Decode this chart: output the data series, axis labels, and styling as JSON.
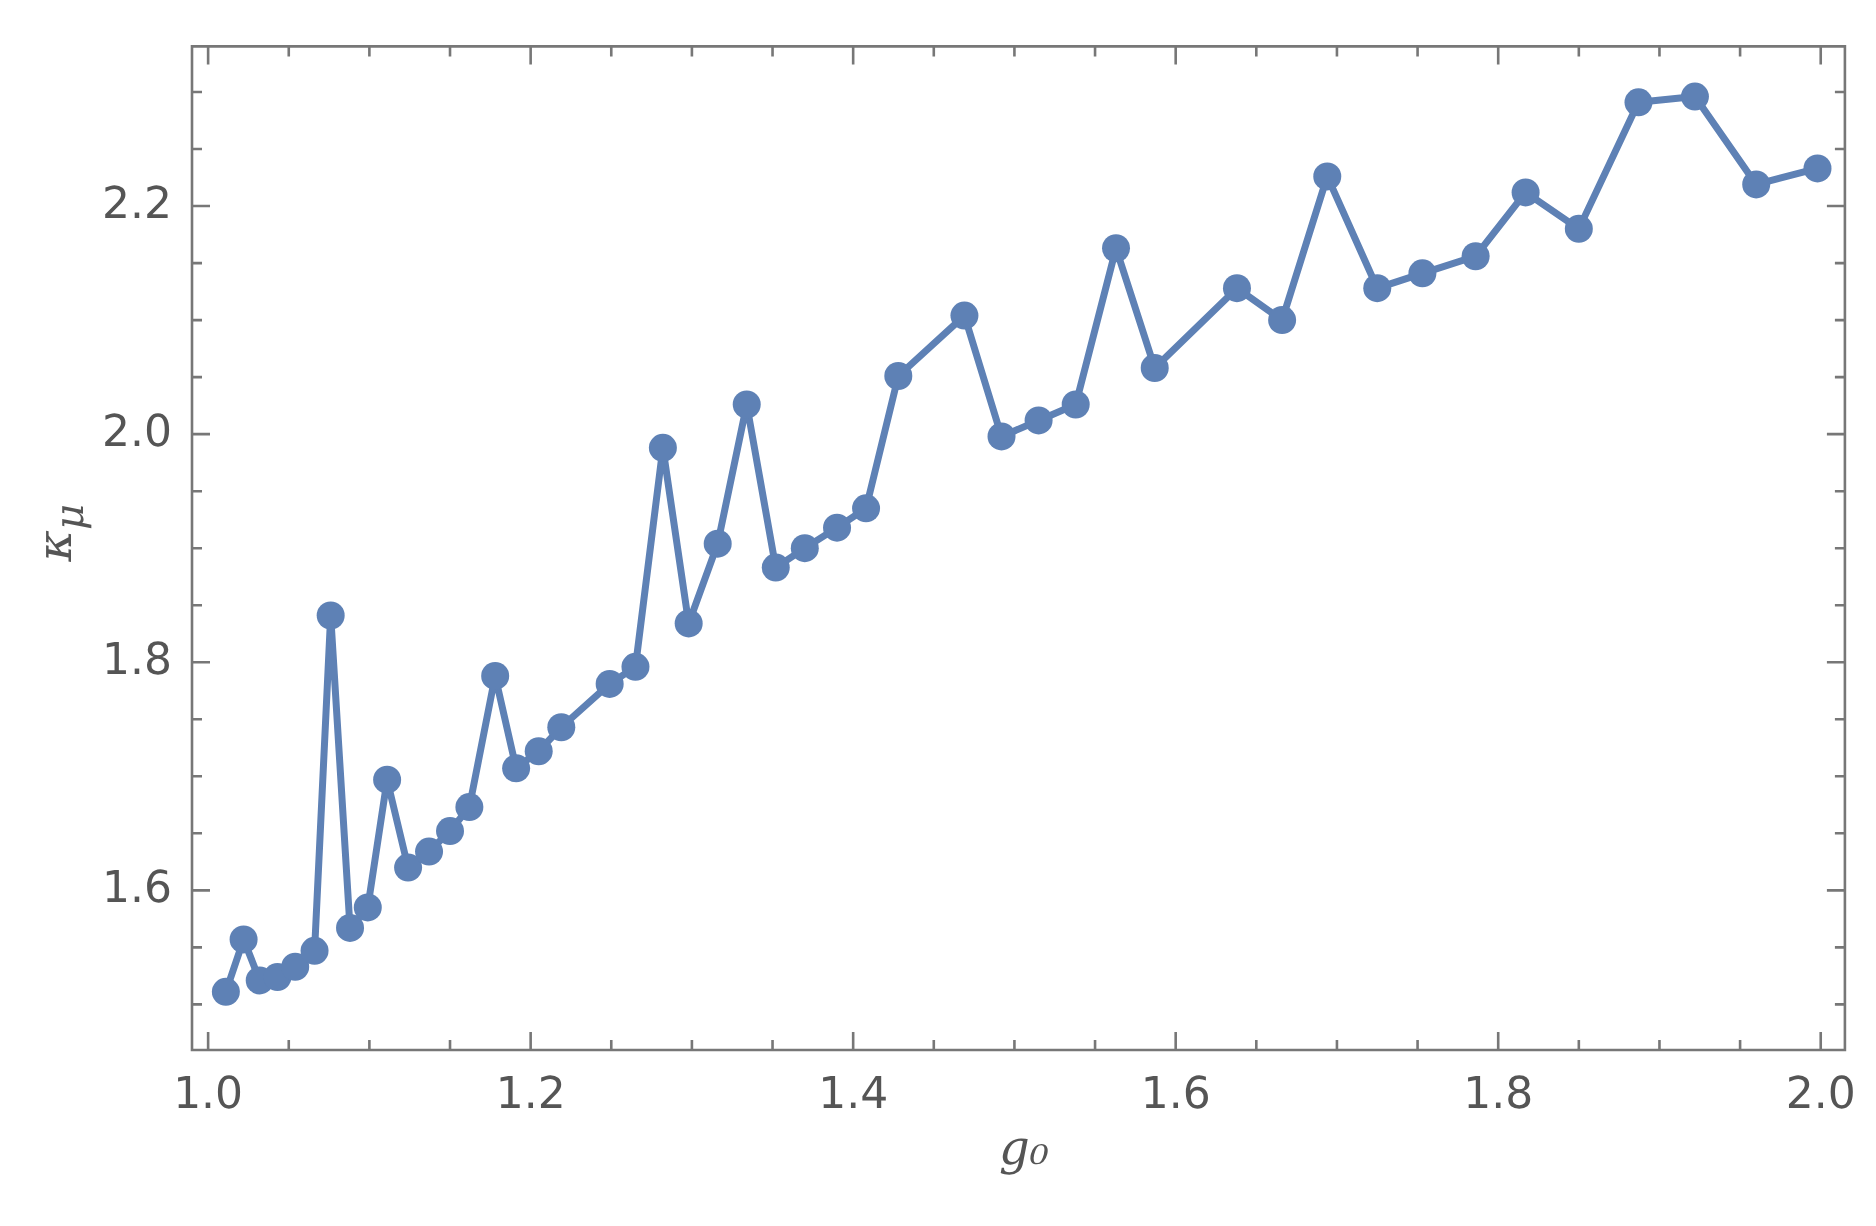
{
  "chart_data": {
    "type": "line",
    "xlabel": "g₀",
    "ylabel": "κ$_{μ}$",
    "marker": "circle",
    "line_style": "solid",
    "grid": false,
    "legend": false,
    "xlim": [
      0.99,
      2.015
    ],
    "ylim": [
      1.46,
      2.34
    ],
    "xticks": [
      {
        "value": 1.0,
        "label": "1.0"
      },
      {
        "value": 1.05,
        "label": null
      },
      {
        "value": 1.1,
        "label": null
      },
      {
        "value": 1.15,
        "label": null
      },
      {
        "value": 1.2,
        "label": "1.2"
      },
      {
        "value": 1.25,
        "label": null
      },
      {
        "value": 1.3,
        "label": null
      },
      {
        "value": 1.35,
        "label": null
      },
      {
        "value": 1.4,
        "label": "1.4"
      },
      {
        "value": 1.45,
        "label": null
      },
      {
        "value": 1.5,
        "label": null
      },
      {
        "value": 1.55,
        "label": null
      },
      {
        "value": 1.6,
        "label": "1.6"
      },
      {
        "value": 1.65,
        "label": null
      },
      {
        "value": 1.7,
        "label": null
      },
      {
        "value": 1.75,
        "label": null
      },
      {
        "value": 1.8,
        "label": "1.8"
      },
      {
        "value": 1.85,
        "label": null
      },
      {
        "value": 1.9,
        "label": null
      },
      {
        "value": 1.95,
        "label": null
      },
      {
        "value": 2.0,
        "label": "2.0"
      }
    ],
    "yticks": [
      {
        "value": 1.5,
        "label": null
      },
      {
        "value": 1.55,
        "label": null
      },
      {
        "value": 1.6,
        "label": "1.6"
      },
      {
        "value": 1.65,
        "label": null
      },
      {
        "value": 1.7,
        "label": null
      },
      {
        "value": 1.75,
        "label": null
      },
      {
        "value": 1.8,
        "label": "1.8"
      },
      {
        "value": 1.85,
        "label": null
      },
      {
        "value": 1.9,
        "label": null
      },
      {
        "value": 1.95,
        "label": null
      },
      {
        "value": 2.0,
        "label": "2.0"
      },
      {
        "value": 2.05,
        "label": null
      },
      {
        "value": 2.1,
        "label": null
      },
      {
        "value": 2.15,
        "label": null
      },
      {
        "value": 2.2,
        "label": "2.2"
      },
      {
        "value": 2.25,
        "label": null
      },
      {
        "value": 2.3,
        "label": null
      }
    ],
    "series": [
      {
        "color": "#5e81b5",
        "x": [
          1.011,
          1.022,
          1.032,
          1.043,
          1.054,
          1.066,
          1.076,
          1.088,
          1.099,
          1.111,
          1.124,
          1.137,
          1.15,
          1.162,
          1.178,
          1.191,
          1.205,
          1.219,
          1.249,
          1.265,
          1.282,
          1.298,
          1.316,
          1.334,
          1.352,
          1.37,
          1.39,
          1.408,
          1.428,
          1.469,
          1.492,
          1.515,
          1.538,
          1.563,
          1.587,
          1.638,
          1.666,
          1.694,
          1.725,
          1.753,
          1.786,
          1.817,
          1.85,
          1.887,
          1.922,
          1.96,
          1.998
        ],
        "values": [
          1.511,
          1.557,
          1.521,
          1.524,
          1.533,
          1.547,
          1.841,
          1.567,
          1.585,
          1.697,
          1.62,
          1.634,
          1.652,
          1.673,
          1.788,
          1.707,
          1.722,
          1.743,
          1.781,
          1.796,
          1.988,
          1.834,
          1.904,
          2.026,
          1.883,
          1.9,
          1.918,
          1.935,
          2.051,
          2.104,
          1.998,
          2.012,
          2.026,
          2.163,
          2.058,
          2.128,
          2.1,
          2.226,
          2.128,
          2.141,
          2.156,
          2.212,
          2.18,
          2.291,
          2.296,
          2.219,
          2.233
        ]
      }
    ]
  }
}
